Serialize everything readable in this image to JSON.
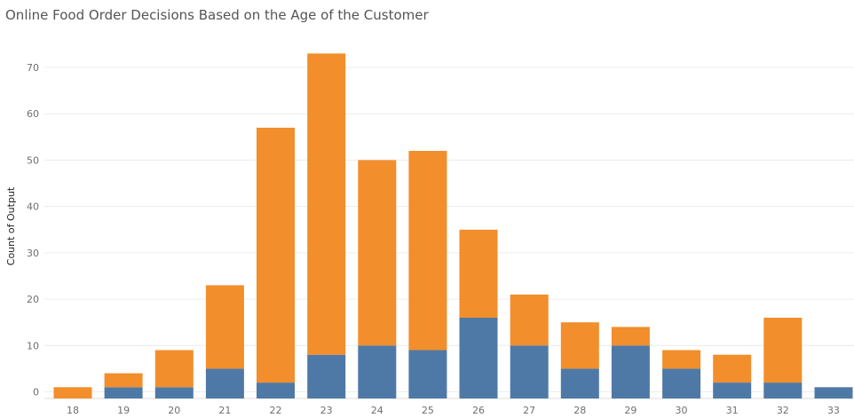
{
  "chart_data": {
    "type": "bar",
    "stacked": true,
    "title": "Online Food Order Decisions Based on the Age of the Customer",
    "xlabel": "",
    "ylabel": "Count of Output",
    "ylim": [
      0,
      75
    ],
    "yticks": [
      0,
      10,
      20,
      30,
      40,
      50,
      60,
      70
    ],
    "grid": true,
    "categories": [
      "18",
      "19",
      "20",
      "21",
      "22",
      "23",
      "24",
      "25",
      "26",
      "27",
      "28",
      "29",
      "30",
      "31",
      "32",
      "33"
    ],
    "series": [
      {
        "color": "#4e79a7",
        "values": [
          0,
          1,
          1,
          5,
          2,
          8,
          10,
          9,
          16,
          10,
          5,
          10,
          5,
          2,
          2,
          1
        ]
      },
      {
        "color": "#f28e2b",
        "values": [
          1,
          3,
          8,
          18,
          55,
          65,
          40,
          43,
          19,
          11,
          10,
          4,
          4,
          6,
          14,
          0
        ]
      }
    ]
  }
}
